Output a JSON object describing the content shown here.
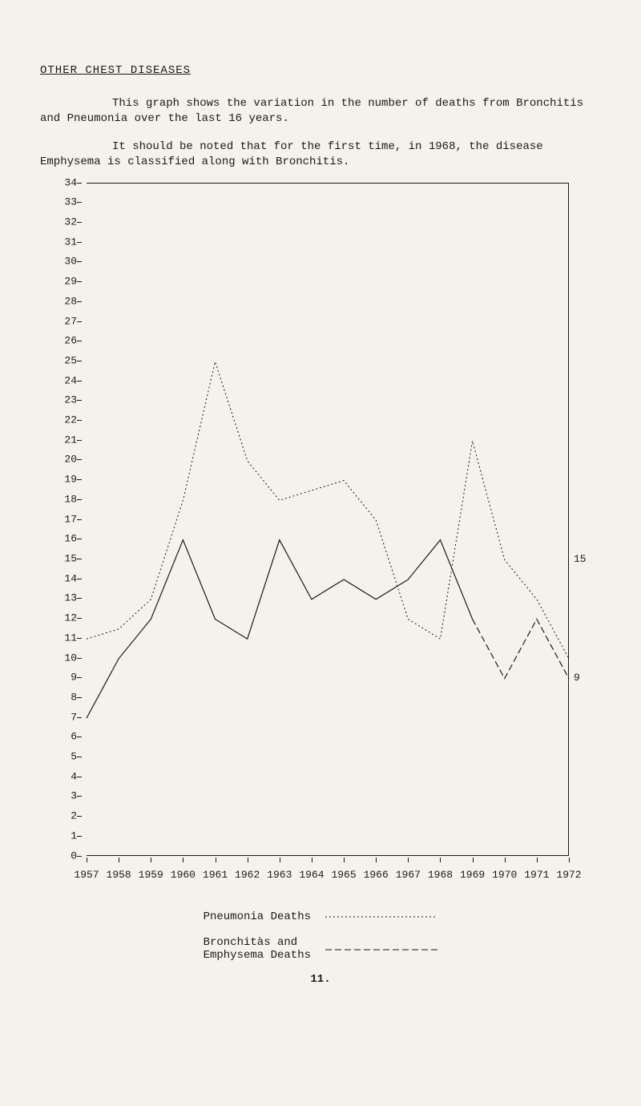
{
  "title": "OTHER CHEST DISEASES",
  "paragraph1": "This graph shows the variation in the number of deaths from Bronchitis and Pneumonia over the last 16 years.",
  "paragraph2": "It should be noted that for the first time, in 1968, the disease Emphysema is classified along with Bronchitis.",
  "chart": {
    "type": "line",
    "background_color": "#f5f2eb",
    "axis_color": "#1a1a1a",
    "label_fontsize": 13,
    "ylim": [
      0,
      34
    ],
    "ytick_step": 1,
    "years": [
      1957,
      1958,
      1959,
      1960,
      1961,
      1962,
      1963,
      1964,
      1965,
      1966,
      1967,
      1968,
      1969,
      1970,
      1971,
      1972
    ],
    "pneumonia": {
      "label": "Pneumonia Deaths",
      "dash": "2,3",
      "stroke_width": 1,
      "values": [
        11,
        11.5,
        13,
        18,
        25,
        20,
        18,
        18.5,
        19,
        17,
        12,
        11,
        21,
        15,
        13,
        10
      ]
    },
    "bronchitis": {
      "label": "Bronchitàs and Emphysema Deaths",
      "label1": "Bronchitàs and",
      "label2": "Emphysema Deaths",
      "dash_main": "none",
      "dash_tail": "8,4",
      "stroke_width": 1.2,
      "values": [
        7,
        10,
        12,
        16,
        12,
        11,
        16,
        13,
        14,
        13,
        14,
        16,
        12,
        9,
        12,
        9
      ]
    },
    "right_annotations": [
      {
        "value": 15,
        "text": "15"
      },
      {
        "value": 9,
        "text": "9"
      }
    ]
  },
  "page_number": "11."
}
